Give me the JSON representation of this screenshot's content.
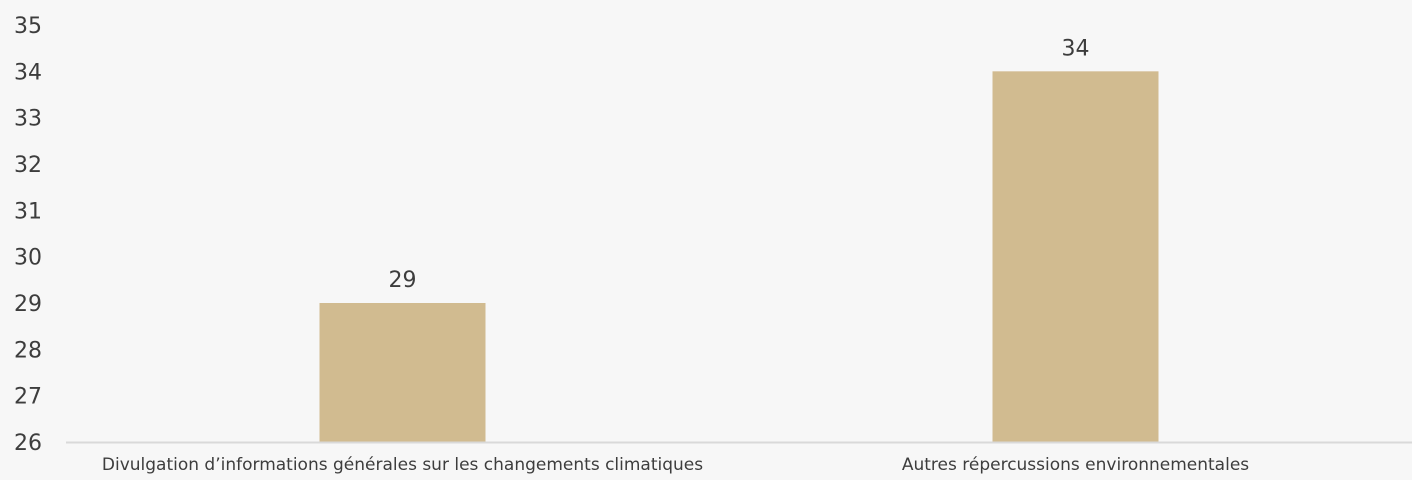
{
  "chart_data": {
    "type": "bar",
    "categories": [
      "Divulgation d’informations générales sur les changements climatiques",
      "Autres répercussions environnementales"
    ],
    "values": [
      29,
      34
    ],
    "data_labels": [
      "29",
      "34"
    ],
    "title": "",
    "xlabel": "",
    "ylabel": "",
    "ylim": [
      26,
      35
    ],
    "yticks": [
      26,
      27,
      28,
      29,
      30,
      31,
      32,
      33,
      34,
      35
    ],
    "ytick_labels": [
      "26",
      "27",
      "28",
      "29",
      "30",
      "31",
      "32",
      "33",
      "34",
      "35"
    ],
    "grid": false,
    "legend": "none",
    "colors": {
      "bar": "#d1bb90",
      "axis": "#d9d9d9",
      "text": "#3d3d3d",
      "background": "#f7f7f7"
    }
  }
}
